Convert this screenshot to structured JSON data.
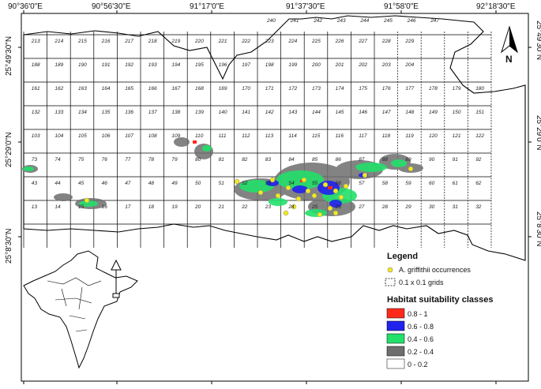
{
  "map": {
    "top_ticks": [
      "90°36'0\"E",
      "90°56'30\"E",
      "91°17'0\"E",
      "91°37'30\"E",
      "91°58'0\"E",
      "92°18'30\"E"
    ],
    "left_ticks": [
      "25°49'30\"N",
      "25°29'0\"N",
      "25°8'30\"N"
    ],
    "right_ticks": [
      "25°49'30\"N",
      "25°29'0\"N",
      "25°8'30\"N"
    ],
    "grid_rows": [
      [
        "213",
        "214",
        "215",
        "216",
        "217",
        "218",
        "219",
        "220",
        "221",
        "222",
        "223",
        "224",
        "225",
        "226",
        "227",
        "228",
        "229"
      ],
      [
        "188",
        "189",
        "190",
        "191",
        "192",
        "193",
        "194",
        "195",
        "196",
        "197",
        "198",
        "199",
        "200",
        "201",
        "202",
        "203",
        "204"
      ],
      [
        "161",
        "162",
        "163",
        "164",
        "165",
        "166",
        "167",
        "168",
        "169",
        "170",
        "171",
        "172",
        "173",
        "174",
        "175",
        "176",
        "177",
        "178",
        "179",
        "180"
      ],
      [
        "132",
        "133",
        "134",
        "135",
        "136",
        "137",
        "138",
        "139",
        "140",
        "141",
        "142",
        "143",
        "144",
        "145",
        "146",
        "147",
        "148",
        "149",
        "150",
        "151"
      ],
      [
        "103",
        "104",
        "105",
        "106",
        "107",
        "108",
        "109",
        "110",
        "111",
        "112",
        "113",
        "114",
        "115",
        "116",
        "117",
        "118",
        "119",
        "120",
        "121",
        "122"
      ],
      [
        "73",
        "74",
        "75",
        "76",
        "77",
        "78",
        "79",
        "80",
        "81",
        "82",
        "83",
        "84",
        "85",
        "86",
        "87",
        "88",
        "89",
        "90",
        "91",
        "92"
      ],
      [
        "43",
        "44",
        "45",
        "46",
        "47",
        "48",
        "49",
        "50",
        "51",
        "52",
        "53",
        "54",
        "55",
        "56",
        "57",
        "58",
        "59",
        "60",
        "61",
        "62"
      ],
      [
        "13",
        "14",
        "15",
        "16",
        "17",
        "18",
        "19",
        "20",
        "21",
        "22",
        "23",
        "24",
        "25",
        "26",
        "27",
        "28",
        "29",
        "30",
        "31",
        "32"
      ]
    ],
    "top_cells": [
      "240",
      "241",
      "242",
      "243",
      "244",
      "245",
      "246",
      "247"
    ],
    "north_label": "N",
    "legend": {
      "title": "Legend",
      "occurrence_label": "A. griffithii occurrences",
      "grid_label": "0.1 x 0.1 grids",
      "classes_title": "Habitat suitability classes",
      "classes": [
        {
          "label": "0.8 - 1",
          "color": "#ff2a1a"
        },
        {
          "label": "0.6 - 0.8",
          "color": "#2222ee"
        },
        {
          "label": "0.4 - 0.6",
          "color": "#22e06a"
        },
        {
          "label": "0.2 - 0.4",
          "color": "#6e6e6e"
        },
        {
          "label": "0 - 0.2",
          "color": "#ffffff"
        }
      ]
    },
    "occurrence_color": "#f2ea1a"
  }
}
